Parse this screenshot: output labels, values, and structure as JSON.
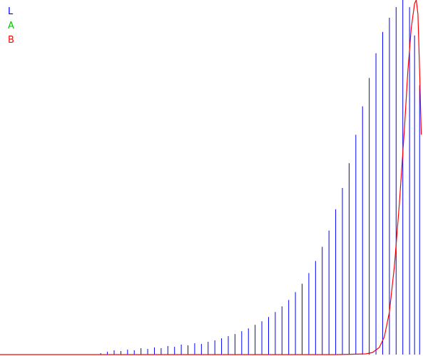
{
  "chart_data": {
    "type": "line",
    "title": "",
    "xlabel": "",
    "ylabel": "",
    "x_range": [
      0,
      255
    ],
    "y_range": [
      0,
      1
    ],
    "grid": false,
    "legend_position": "top-left",
    "series": [
      {
        "name": "L",
        "color": "#0000ff",
        "style": "comb",
        "peaks": [
          [
            60,
            0.004
          ],
          [
            64,
            0.008
          ],
          [
            68,
            0.012
          ],
          [
            72,
            0.01
          ],
          [
            76,
            0.014
          ],
          [
            80,
            0.012
          ],
          [
            84,
            0.018
          ],
          [
            88,
            0.016
          ],
          [
            92,
            0.02
          ],
          [
            96,
            0.018
          ],
          [
            100,
            0.024
          ],
          [
            104,
            0.022
          ],
          [
            108,
            0.028
          ],
          [
            112,
            0.026
          ],
          [
            116,
            0.032
          ],
          [
            120,
            0.03
          ],
          [
            124,
            0.036
          ],
          [
            128,
            0.04
          ],
          [
            132,
            0.046
          ],
          [
            136,
            0.052
          ],
          [
            140,
            0.058
          ],
          [
            144,
            0.066
          ],
          [
            148,
            0.074
          ],
          [
            152,
            0.084
          ],
          [
            156,
            0.094
          ],
          [
            160,
            0.106
          ],
          [
            164,
            0.12
          ],
          [
            168,
            0.136
          ],
          [
            172,
            0.154
          ],
          [
            176,
            0.176
          ],
          [
            180,
            0.2
          ],
          [
            184,
            0.23
          ],
          [
            188,
            0.264
          ],
          [
            192,
            0.304
          ],
          [
            196,
            0.35
          ],
          [
            200,
            0.41
          ],
          [
            204,
            0.47
          ],
          [
            208,
            0.54
          ],
          [
            212,
            0.62
          ],
          [
            216,
            0.7
          ],
          [
            220,
            0.78
          ],
          [
            224,
            0.85
          ],
          [
            228,
            0.91
          ],
          [
            232,
            0.95
          ],
          [
            236,
            0.98
          ],
          [
            240,
            1.0
          ],
          [
            244,
            0.98
          ],
          [
            247,
            0.9
          ],
          [
            250,
            0.76
          ]
        ]
      },
      {
        "name": "A",
        "color": "#00cc00",
        "style": "line",
        "points": []
      },
      {
        "name": "B",
        "color": "#ff0000",
        "style": "line",
        "points": [
          [
            0,
            0
          ],
          [
            200,
            0
          ],
          [
            210,
            0.001
          ],
          [
            218,
            0.002
          ],
          [
            222,
            0.006
          ],
          [
            226,
            0.02
          ],
          [
            229,
            0.05
          ],
          [
            232,
            0.12
          ],
          [
            235,
            0.25
          ],
          [
            238,
            0.43
          ],
          [
            241,
            0.64
          ],
          [
            243,
            0.8
          ],
          [
            245,
            0.92
          ],
          [
            247,
            0.99
          ],
          [
            248,
            1.0
          ],
          [
            249,
            0.96
          ],
          [
            250,
            0.8
          ],
          [
            251,
            0.62
          ]
        ]
      }
    ]
  },
  "legend": [
    {
      "label": "L",
      "color": "#0000ff"
    },
    {
      "label": "A",
      "color": "#00cc00"
    },
    {
      "label": "B",
      "color": "#ff0000"
    }
  ]
}
